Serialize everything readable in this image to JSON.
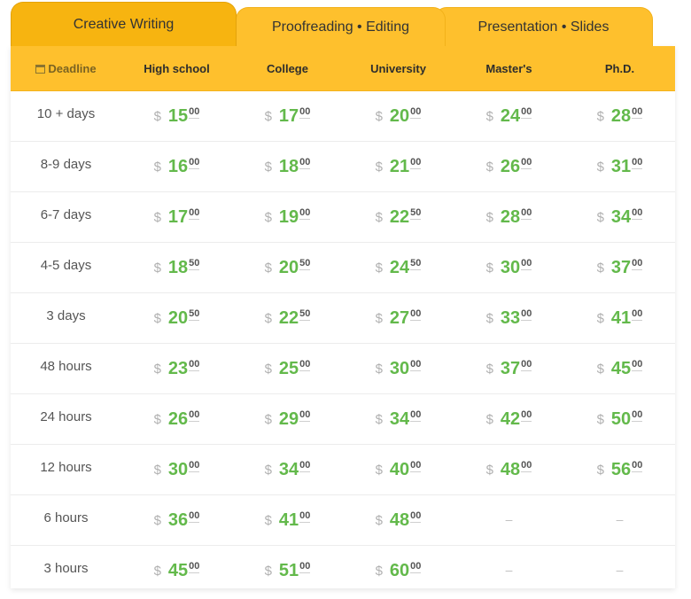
{
  "tabs": [
    {
      "label": "Creative Writing"
    },
    {
      "label": "Proofreading • Editing"
    },
    {
      "label": "Presentation • Slides"
    }
  ],
  "header": {
    "deadline": "Deadline",
    "levels": [
      "High school",
      "College",
      "University",
      "Master's",
      "Ph.D."
    ]
  },
  "currency": "$",
  "dash": "–",
  "rows": [
    {
      "deadline": "10 + days",
      "prices": [
        [
          "15",
          "00"
        ],
        [
          "17",
          "00"
        ],
        [
          "20",
          "00"
        ],
        [
          "24",
          "00"
        ],
        [
          "28",
          "00"
        ]
      ]
    },
    {
      "deadline": "8-9 days",
      "prices": [
        [
          "16",
          "00"
        ],
        [
          "18",
          "00"
        ],
        [
          "21",
          "00"
        ],
        [
          "26",
          "00"
        ],
        [
          "31",
          "00"
        ]
      ]
    },
    {
      "deadline": "6-7 days",
      "prices": [
        [
          "17",
          "00"
        ],
        [
          "19",
          "00"
        ],
        [
          "22",
          "50"
        ],
        [
          "28",
          "00"
        ],
        [
          "34",
          "00"
        ]
      ]
    },
    {
      "deadline": "4-5 days",
      "prices": [
        [
          "18",
          "50"
        ],
        [
          "20",
          "50"
        ],
        [
          "24",
          "50"
        ],
        [
          "30",
          "00"
        ],
        [
          "37",
          "00"
        ]
      ]
    },
    {
      "deadline": "3 days",
      "prices": [
        [
          "20",
          "50"
        ],
        [
          "22",
          "50"
        ],
        [
          "27",
          "00"
        ],
        [
          "33",
          "00"
        ],
        [
          "41",
          "00"
        ]
      ]
    },
    {
      "deadline": "48 hours",
      "prices": [
        [
          "23",
          "00"
        ],
        [
          "25",
          "00"
        ],
        [
          "30",
          "00"
        ],
        [
          "37",
          "00"
        ],
        [
          "45",
          "00"
        ]
      ]
    },
    {
      "deadline": "24 hours",
      "prices": [
        [
          "26",
          "00"
        ],
        [
          "29",
          "00"
        ],
        [
          "34",
          "00"
        ],
        [
          "42",
          "00"
        ],
        [
          "50",
          "00"
        ]
      ]
    },
    {
      "deadline": "12 hours",
      "prices": [
        [
          "30",
          "00"
        ],
        [
          "34",
          "00"
        ],
        [
          "40",
          "00"
        ],
        [
          "48",
          "00"
        ],
        [
          "56",
          "00"
        ]
      ]
    },
    {
      "deadline": "6 hours",
      "prices": [
        [
          "36",
          "00"
        ],
        [
          "41",
          "00"
        ],
        [
          "48",
          "00"
        ],
        null,
        null
      ]
    },
    {
      "deadline": "3 hours",
      "prices": [
        [
          "45",
          "00"
        ],
        [
          "51",
          "00"
        ],
        [
          "60",
          "00"
        ],
        null,
        null
      ]
    }
  ]
}
